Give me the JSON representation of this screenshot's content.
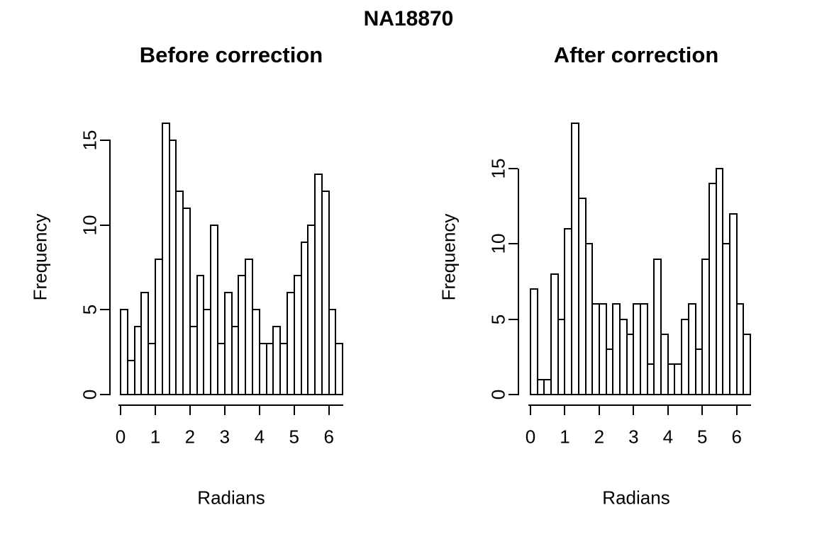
{
  "page": {
    "main_title": "NA18870",
    "background_color": "#ffffff",
    "foreground_color": "#000000"
  },
  "chart_data": [
    {
      "type": "bar",
      "subtype": "histogram",
      "title": "Before correction",
      "xlabel": "Radians",
      "ylabel": "Frequency",
      "bin_start": 0,
      "bin_width": 0.2,
      "counts": [
        5,
        2,
        4,
        6,
        3,
        8,
        16,
        15,
        12,
        11,
        4,
        7,
        5,
        10,
        3,
        6,
        4,
        7,
        8,
        5,
        3,
        3,
        4,
        3,
        6,
        7,
        9,
        10,
        13,
        12,
        5,
        3
      ],
      "total_observations": 219,
      "x_ticks": [
        0,
        1,
        2,
        3,
        4,
        5,
        6
      ],
      "y_ticks": [
        0,
        5,
        10,
        15
      ],
      "xlim": [
        0,
        6.4
      ],
      "ylim": [
        0,
        16
      ],
      "bar_fill": "#ffffff",
      "bar_stroke": "#000000",
      "grid": "off"
    },
    {
      "type": "bar",
      "subtype": "histogram",
      "title": "After correction",
      "xlabel": "Radians",
      "ylabel": "Frequency",
      "bin_start": 0,
      "bin_width": 0.2,
      "counts": [
        7,
        1,
        1,
        8,
        5,
        11,
        18,
        13,
        10,
        6,
        6,
        3,
        6,
        5,
        4,
        6,
        6,
        2,
        9,
        4,
        2,
        2,
        5,
        6,
        3,
        9,
        14,
        15,
        10,
        12,
        6,
        4
      ],
      "total_observations": 219,
      "x_ticks": [
        0,
        1,
        2,
        3,
        4,
        5,
        6
      ],
      "y_ticks": [
        0,
        5,
        10,
        15
      ],
      "xlim": [
        0,
        6.4
      ],
      "ylim": [
        0,
        18
      ],
      "bar_fill": "#ffffff",
      "bar_stroke": "#000000",
      "grid": "off"
    }
  ]
}
